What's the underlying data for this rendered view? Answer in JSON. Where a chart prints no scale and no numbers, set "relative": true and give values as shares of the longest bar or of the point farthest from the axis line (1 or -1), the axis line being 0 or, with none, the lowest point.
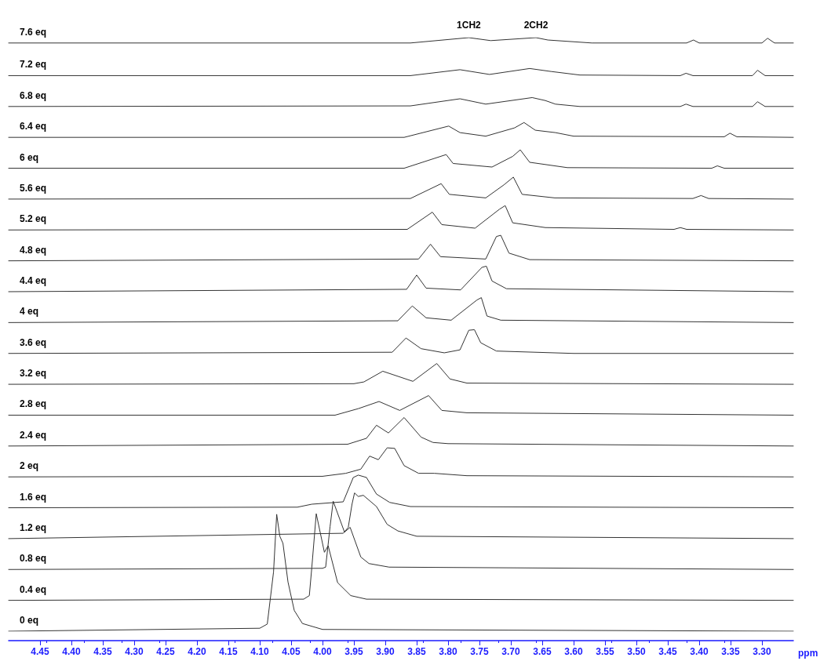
{
  "chart_data": {
    "type": "line",
    "relative": true,
    "xlabel": "ppm",
    "xlim": [
      4.5,
      3.25
    ],
    "xticks": [
      {
        "value": 4.45,
        "label": "4.45"
      },
      {
        "value": 4.4,
        "label": "4.40"
      },
      {
        "value": 4.35,
        "label": "4.35"
      },
      {
        "value": 4.3,
        "label": "4.30"
      },
      {
        "value": 4.25,
        "label": "4.25"
      },
      {
        "value": 4.2,
        "label": "4.20"
      },
      {
        "value": 4.15,
        "label": "4.15"
      },
      {
        "value": 4.1,
        "label": "4.10"
      },
      {
        "value": 4.05,
        "label": "4.05"
      },
      {
        "value": 4.0,
        "label": "4.00"
      },
      {
        "value": 3.95,
        "label": "3.95"
      },
      {
        "value": 3.9,
        "label": "3.90"
      },
      {
        "value": 3.85,
        "label": "3.85"
      },
      {
        "value": 3.8,
        "label": "3.80"
      },
      {
        "value": 3.75,
        "label": "3.75"
      },
      {
        "value": 3.7,
        "label": "3.70"
      },
      {
        "value": 3.65,
        "label": "3.65"
      },
      {
        "value": 3.6,
        "label": "3.60"
      },
      {
        "value": 3.55,
        "label": "3.55"
      },
      {
        "value": 3.5,
        "label": "3.50"
      },
      {
        "value": 3.45,
        "label": "3.45"
      },
      {
        "value": 3.4,
        "label": "3.40"
      },
      {
        "value": 3.35,
        "label": "3.35"
      },
      {
        "value": 3.3,
        "label": "3.30"
      }
    ],
    "annotations": [
      {
        "text": "1CH2",
        "x": 3.767,
        "y": 1
      },
      {
        "text": "2CH2",
        "x": 3.66,
        "y": 1
      }
    ],
    "legend": false,
    "grid": false,
    "series": [
      {
        "name": "7.6 eq",
        "color": "#333333",
        "x": [
          4.5,
          3.86,
          3.767,
          3.732,
          3.66,
          3.641,
          3.571,
          3.42,
          3.409,
          3.4,
          3.3,
          3.291,
          3.28,
          3.25
        ],
        "values": [
          0.991,
          0.991,
          1,
          0.995,
          1,
          0.996,
          0.991,
          0.991,
          0.996,
          0.991,
          0.991,
          0.999,
          0.991,
          0.991
        ]
      },
      {
        "name": "7.2 eq",
        "color": "#333333",
        "x": [
          4.5,
          3.86,
          3.781,
          3.734,
          3.67,
          3.636,
          3.59,
          3.43,
          3.421,
          3.41,
          3.315,
          3.307,
          3.295,
          3.25
        ],
        "values": [
          0.936,
          0.936,
          0.946,
          0.938,
          0.948,
          0.943,
          0.937,
          0.936,
          0.94,
          0.936,
          0.936,
          0.945,
          0.936,
          0.936
        ]
      },
      {
        "name": "6.8 eq",
        "color": "#333333",
        "x": [
          4.5,
          3.86,
          3.781,
          3.74,
          3.666,
          3.645,
          3.629,
          3.59,
          3.43,
          3.421,
          3.41,
          3.315,
          3.307,
          3.295,
          3.25
        ],
        "values": [
          0.884,
          0.885,
          0.897,
          0.888,
          0.899,
          0.894,
          0.888,
          0.884,
          0.884,
          0.888,
          0.884,
          0.884,
          0.892,
          0.884,
          0.884
        ]
      },
      {
        "name": "6.4 eq",
        "color": "#333333",
        "x": [
          4.5,
          3.87,
          3.799,
          3.781,
          3.74,
          3.694,
          3.679,
          3.661,
          3.629,
          3.6,
          3.36,
          3.351,
          3.34,
          3.25
        ],
        "values": [
          0.832,
          0.832,
          0.851,
          0.84,
          0.834,
          0.848,
          0.857,
          0.844,
          0.84,
          0.834,
          0.833,
          0.839,
          0.833,
          0.832
        ]
      },
      {
        "name": "6 eq",
        "color": "#333333",
        "x": [
          4.5,
          3.87,
          3.803,
          3.792,
          3.73,
          3.697,
          3.685,
          3.67,
          3.61,
          3.38,
          3.371,
          3.36,
          3.25
        ],
        "values": [
          0.78,
          0.78,
          0.803,
          0.788,
          0.782,
          0.8,
          0.811,
          0.79,
          0.781,
          0.78,
          0.784,
          0.78,
          0.78
        ]
      },
      {
        "name": "5.6 eq",
        "color": "#333333",
        "x": [
          4.5,
          3.86,
          3.811,
          3.798,
          3.74,
          3.711,
          3.696,
          3.682,
          3.63,
          3.41,
          3.397,
          3.385,
          3.25
        ],
        "values": [
          0.728,
          0.729,
          0.754,
          0.736,
          0.73,
          0.752,
          0.765,
          0.736,
          0.73,
          0.729,
          0.734,
          0.729,
          0.728
        ]
      },
      {
        "name": "5.2 eq",
        "color": "#333333",
        "x": [
          4.5,
          3.865,
          3.825,
          3.81,
          3.757,
          3.718,
          3.709,
          3.697,
          3.645,
          3.44,
          3.43,
          3.42,
          3.25
        ],
        "values": [
          0.676,
          0.677,
          0.706,
          0.685,
          0.679,
          0.711,
          0.717,
          0.688,
          0.68,
          0.677,
          0.68,
          0.677,
          0.676
        ]
      },
      {
        "name": "4.8 eq",
        "color": "#333333",
        "x": [
          4.5,
          3.847,
          3.828,
          3.812,
          3.74,
          3.723,
          3.716,
          3.703,
          3.67,
          3.25
        ],
        "values": [
          0.624,
          0.627,
          0.652,
          0.631,
          0.627,
          0.665,
          0.667,
          0.637,
          0.626,
          0.624
        ]
      },
      {
        "name": "4.4 eq",
        "color": "#333333",
        "x": [
          4.5,
          3.866,
          3.85,
          3.835,
          3.78,
          3.746,
          3.739,
          3.73,
          3.707,
          3.25
        ],
        "values": [
          0.572,
          0.576,
          0.6,
          0.578,
          0.575,
          0.613,
          0.615,
          0.59,
          0.577,
          0.572
        ]
      },
      {
        "name": "4 eq",
        "color": "#333333",
        "x": [
          4.5,
          3.88,
          3.857,
          3.835,
          3.795,
          3.754,
          3.747,
          3.738,
          3.716,
          3.25
        ],
        "values": [
          0.52,
          0.523,
          0.548,
          0.528,
          0.524,
          0.558,
          0.562,
          0.531,
          0.524,
          0.52
        ]
      },
      {
        "name": "3.6 eq",
        "color": "#333333",
        "x": [
          4.5,
          3.889,
          3.867,
          3.843,
          3.806,
          3.781,
          3.767,
          3.758,
          3.748,
          3.723,
          3.6,
          3.25
        ],
        "values": [
          0.468,
          0.47,
          0.494,
          0.476,
          0.469,
          0.474,
          0.507,
          0.508,
          0.486,
          0.472,
          0.468,
          0.468
        ]
      },
      {
        "name": "3.2 eq",
        "color": "#333333",
        "x": [
          4.5,
          3.95,
          3.934,
          3.904,
          3.856,
          3.818,
          3.797,
          3.77,
          3.25
        ],
        "values": [
          0.416,
          0.417,
          0.42,
          0.438,
          0.421,
          0.451,
          0.425,
          0.418,
          0.416
        ]
      },
      {
        "name": "2.8 eq",
        "color": "#333333",
        "x": [
          4.5,
          3.98,
          3.943,
          3.91,
          3.877,
          3.831,
          3.81,
          3.77,
          3.25
        ],
        "values": [
          0.364,
          0.364,
          0.375,
          0.387,
          0.372,
          0.397,
          0.372,
          0.368,
          0.364
        ]
      },
      {
        "name": "2.4 eq",
        "color": "#333333",
        "x": [
          4.5,
          3.96,
          3.93,
          3.914,
          3.895,
          3.87,
          3.843,
          3.824,
          3.8,
          3.25
        ],
        "values": [
          0.312,
          0.315,
          0.325,
          0.347,
          0.334,
          0.36,
          0.327,
          0.318,
          0.316,
          0.312
        ]
      },
      {
        "name": "2 eq",
        "color": "#333333",
        "x": [
          4.5,
          4.0,
          3.963,
          3.939,
          3.925,
          3.911,
          3.897,
          3.885,
          3.87,
          3.847,
          3.822,
          3.77,
          3.25
        ],
        "values": [
          0.26,
          0.261,
          0.266,
          0.273,
          0.295,
          0.289,
          0.309,
          0.308,
          0.279,
          0.266,
          0.266,
          0.262,
          0.26
        ]
      },
      {
        "name": "1.6 eq",
        "color": "#333333",
        "x": [
          4.5,
          4.04,
          4.017,
          3.967,
          3.951,
          3.943,
          3.93,
          3.914,
          3.893,
          3.86,
          3.25
        ],
        "values": [
          0.208,
          0.209,
          0.214,
          0.218,
          0.259,
          0.263,
          0.259,
          0.231,
          0.217,
          0.21,
          0.208
        ]
      },
      {
        "name": "1.2 eq",
        "color": "#333333",
        "x": [
          4.5,
          3.967,
          3.959,
          3.953,
          3.949,
          3.943,
          3.935,
          3.914,
          3.897,
          3.88,
          3.85,
          3.25
        ],
        "values": [
          0.156,
          0.165,
          0.175,
          0.214,
          0.233,
          0.227,
          0.229,
          0.21,
          0.18,
          0.169,
          0.16,
          0.156
        ]
      },
      {
        "name": "0.8 eq",
        "color": "#333333",
        "x": [
          4.5,
          4.0,
          3.995,
          3.988,
          3.983,
          3.965,
          3.956,
          3.939,
          3.926,
          3.894,
          3.25
        ],
        "values": [
          0.104,
          0.106,
          0.108,
          0.176,
          0.219,
          0.167,
          0.175,
          0.125,
          0.114,
          0.108,
          0.104
        ]
      },
      {
        "name": "0.4 eq",
        "color": "#333333",
        "x": [
          4.5,
          4.03,
          4.021,
          4.017,
          4.01,
          3.997,
          3.991,
          3.976,
          3.955,
          3.93,
          3.25
        ],
        "values": [
          0.052,
          0.054,
          0.06,
          0.108,
          0.198,
          0.133,
          0.144,
          0.082,
          0.06,
          0.054,
          0.052
        ]
      },
      {
        "name": "0 eq",
        "color": "#333333",
        "x": [
          4.5,
          4.1,
          4.088,
          4.078,
          4.073,
          4.068,
          4.063,
          4.055,
          4.045,
          4.032,
          4.0,
          3.25
        ],
        "values": [
          0,
          0.005,
          0.012,
          0.1,
          0.197,
          0.16,
          0.148,
          0.083,
          0.035,
          0.013,
          0.003,
          0
        ]
      }
    ]
  }
}
